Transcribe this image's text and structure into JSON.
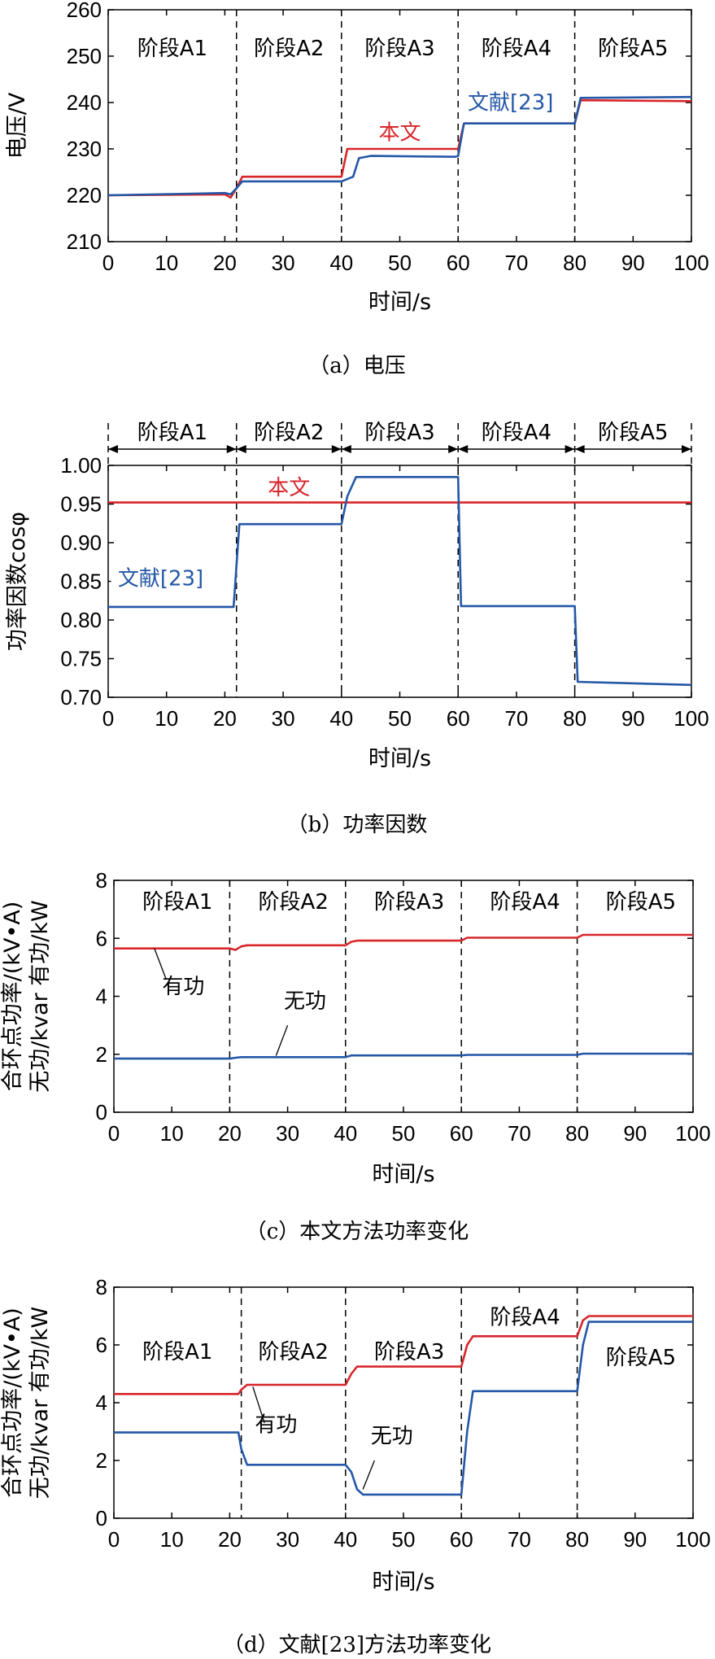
{
  "colors": {
    "red": "#d8262b",
    "blue": "#2457a6",
    "axis": "#000000"
  },
  "chart_data": [
    {
      "type": "line",
      "panel_title": "（a）电压",
      "xlabel": "时间/s",
      "ylabel": "电压/V",
      "xlim": [
        0,
        100
      ],
      "ylim": [
        210,
        260
      ],
      "xticks": [
        0,
        10,
        20,
        30,
        40,
        50,
        60,
        70,
        80,
        90,
        100
      ],
      "yticks": [
        210,
        220,
        230,
        240,
        250,
        260
      ],
      "boundaries": [
        22,
        40,
        60,
        80
      ],
      "stages": [
        {
          "label": "阶段A1",
          "x": 11
        },
        {
          "label": "阶段A2",
          "x": 31
        },
        {
          "label": "阶段A3",
          "x": 50
        },
        {
          "label": "阶段A4",
          "x": 70
        },
        {
          "label": "阶段A5",
          "x": 90
        }
      ],
      "stage_arrows": false,
      "series": [
        {
          "name": "本文",
          "color": "red",
          "x": [
            0,
            20,
            21,
            22,
            23,
            39.5,
            40,
            41,
            59.5,
            60,
            61,
            79.5,
            80,
            81,
            100
          ],
          "values": [
            220,
            220.2,
            219.5,
            221.5,
            224,
            224,
            224,
            230,
            230,
            230,
            235.5,
            235.5,
            235.5,
            240.5,
            240.3
          ]
        },
        {
          "name": "文献[23]",
          "color": "blue",
          "x": [
            0,
            20,
            21,
            22,
            23,
            39.5,
            40,
            41,
            42,
            43,
            45,
            59.5,
            60,
            61,
            79.5,
            80,
            81,
            100
          ],
          "values": [
            220,
            220.5,
            220.2,
            221.5,
            223,
            223,
            223,
            223.5,
            224,
            228,
            228.5,
            228.3,
            228.5,
            235.5,
            235.5,
            235.5,
            241,
            241.2
          ]
        }
      ],
      "labels": [
        {
          "text": "本文",
          "color": "red",
          "x": 50,
          "y": 232
        },
        {
          "text": "文献[23]",
          "color": "blue",
          "x": 69,
          "y": 238.5
        }
      ]
    },
    {
      "type": "line",
      "panel_title": "（b）功率因数",
      "xlabel": "时间/s",
      "ylabel": "功率因数cosφ",
      "xlim": [
        0,
        100
      ],
      "ylim": [
        0.7,
        1.0
      ],
      "xticks": [
        0,
        10,
        20,
        30,
        40,
        50,
        60,
        70,
        80,
        90,
        100
      ],
      "yticks": [
        0.7,
        0.75,
        0.8,
        0.85,
        0.9,
        0.95,
        1.0
      ],
      "boundaries": [
        22,
        40,
        60,
        80
      ],
      "stages": [
        {
          "label": "阶段A1",
          "x": 11
        },
        {
          "label": "阶段A2",
          "x": 31
        },
        {
          "label": "阶段A3",
          "x": 50
        },
        {
          "label": "阶段A4",
          "x": 70
        },
        {
          "label": "阶段A5",
          "x": 90
        }
      ],
      "stage_arrows": true,
      "series": [
        {
          "name": "本文",
          "color": "red",
          "x": [
            0,
            100
          ],
          "values": [
            0.952,
            0.952
          ]
        },
        {
          "name": "文献[23]",
          "color": "blue",
          "x": [
            0,
            21.5,
            22,
            22.5,
            39.5,
            40,
            41,
            42.5,
            59.5,
            60,
            60.5,
            79.5,
            80,
            80.5,
            100
          ],
          "values": [
            0.817,
            0.817,
            0.87,
            0.924,
            0.924,
            0.924,
            0.96,
            0.985,
            0.985,
            0.985,
            0.818,
            0.818,
            0.818,
            0.72,
            0.716
          ]
        }
      ],
      "labels": [
        {
          "text": "本文",
          "color": "red",
          "x": 31,
          "y": 0.962
        },
        {
          "text": "文献[23]",
          "color": "blue",
          "x": 9,
          "y": 0.845
        }
      ]
    },
    {
      "type": "line",
      "panel_title": "（c）本文方法功率变化",
      "xlabel": "时间/s",
      "ylabel": "合环点功率/(kV•A)",
      "ylabel2": "无功/kvar  有功/kW",
      "xlim": [
        0,
        100
      ],
      "ylim": [
        0,
        8
      ],
      "xticks": [
        0,
        10,
        20,
        30,
        40,
        50,
        60,
        70,
        80,
        90,
        100
      ],
      "yticks": [
        0,
        2,
        4,
        6,
        8
      ],
      "boundaries": [
        20,
        40,
        60,
        80
      ],
      "stages": [
        {
          "label": "阶段A1",
          "x": 11
        },
        {
          "label": "阶段A2",
          "x": 31
        },
        {
          "label": "阶段A3",
          "x": 51
        },
        {
          "label": "阶段A4",
          "x": 71
        },
        {
          "label": "阶段A5",
          "x": 91
        }
      ],
      "stage_arrows": false,
      "series": [
        {
          "name": "有功",
          "color": "red",
          "x": [
            0,
            20,
            21,
            22,
            23,
            40,
            41,
            42,
            60,
            61,
            80,
            81,
            100
          ],
          "values": [
            5.65,
            5.65,
            5.6,
            5.72,
            5.76,
            5.76,
            5.88,
            5.92,
            5.92,
            6.02,
            6.02,
            6.12,
            6.12
          ]
        },
        {
          "name": "无功",
          "color": "blue",
          "x": [
            0,
            20,
            21,
            22,
            40,
            41,
            42,
            60,
            61,
            80,
            81,
            100
          ],
          "values": [
            1.85,
            1.85,
            1.88,
            1.9,
            1.9,
            1.96,
            1.96,
            1.96,
            1.98,
            1.98,
            2.02,
            2.02
          ]
        }
      ],
      "labels": [
        {
          "text": "有功",
          "color": "#000000",
          "x": 12,
          "y": 4.1
        },
        {
          "text": "无功",
          "color": "#000000",
          "x": 33,
          "y": 3.6
        }
      ],
      "pointers": [
        {
          "from": [
            9,
            4.6
          ],
          "to": [
            7,
            5.65
          ]
        },
        {
          "from": [
            30,
            3.0
          ],
          "to": [
            28,
            1.95
          ]
        }
      ]
    },
    {
      "type": "line",
      "panel_title": "（d）文献[23]方法功率变化",
      "xlabel": "时间/s",
      "ylabel": "合环点功率/(kV•A)",
      "ylabel2": "无功/kvar  有功/kW",
      "xlim": [
        0,
        100
      ],
      "ylim": [
        0,
        8
      ],
      "xticks": [
        0,
        10,
        20,
        30,
        40,
        50,
        60,
        70,
        80,
        90,
        100
      ],
      "yticks": [
        0,
        2,
        4,
        6,
        8
      ],
      "boundaries": [
        22,
        40,
        60,
        80
      ],
      "stages": [
        {
          "label": "阶段A1",
          "x": 11
        },
        {
          "label": "阶段A2",
          "x": 31
        },
        {
          "label": "阶段A3",
          "x": 51
        },
        {
          "label": "阶段A4",
          "x": 71
        },
        {
          "label": "阶段A5",
          "x": 91
        }
      ],
      "stage_arrows": false,
      "series": [
        {
          "name": "有功",
          "color": "red",
          "x": [
            0,
            21.5,
            22,
            23,
            40,
            41,
            42,
            60,
            61,
            62,
            80,
            81,
            82,
            100
          ],
          "values": [
            4.3,
            4.3,
            4.45,
            4.62,
            4.62,
            5.0,
            5.25,
            5.25,
            6.0,
            6.3,
            6.3,
            6.85,
            7.0,
            7.0
          ]
        },
        {
          "name": "无功",
          "color": "blue",
          "x": [
            0,
            21.5,
            22,
            23,
            40,
            41,
            42,
            43,
            60,
            61,
            62,
            80,
            81,
            82,
            100
          ],
          "values": [
            2.97,
            2.97,
            2.4,
            1.85,
            1.85,
            1.6,
            1.0,
            0.82,
            0.82,
            3.0,
            4.4,
            4.4,
            6.0,
            6.8,
            6.8
          ]
        }
      ],
      "labels": [
        {
          "text": "有功",
          "color": "#000000",
          "x": 28,
          "y": 3.0
        },
        {
          "text": "无功",
          "color": "#000000",
          "x": 48,
          "y": 2.6
        }
      ],
      "stage_positions": [
        {
          "x": 11,
          "y": 5.8
        },
        {
          "x": 31,
          "y": 5.8
        },
        {
          "x": 51,
          "y": 5.8
        },
        {
          "x": 71,
          "y": 7.0
        },
        {
          "x": 91,
          "y": 5.6
        }
      ],
      "pointers": [
        {
          "from": [
            26,
            3.3
          ],
          "to": [
            24,
            4.55
          ]
        },
        {
          "from": [
            45,
            2.0
          ],
          "to": [
            43,
            1.0
          ]
        }
      ]
    }
  ]
}
